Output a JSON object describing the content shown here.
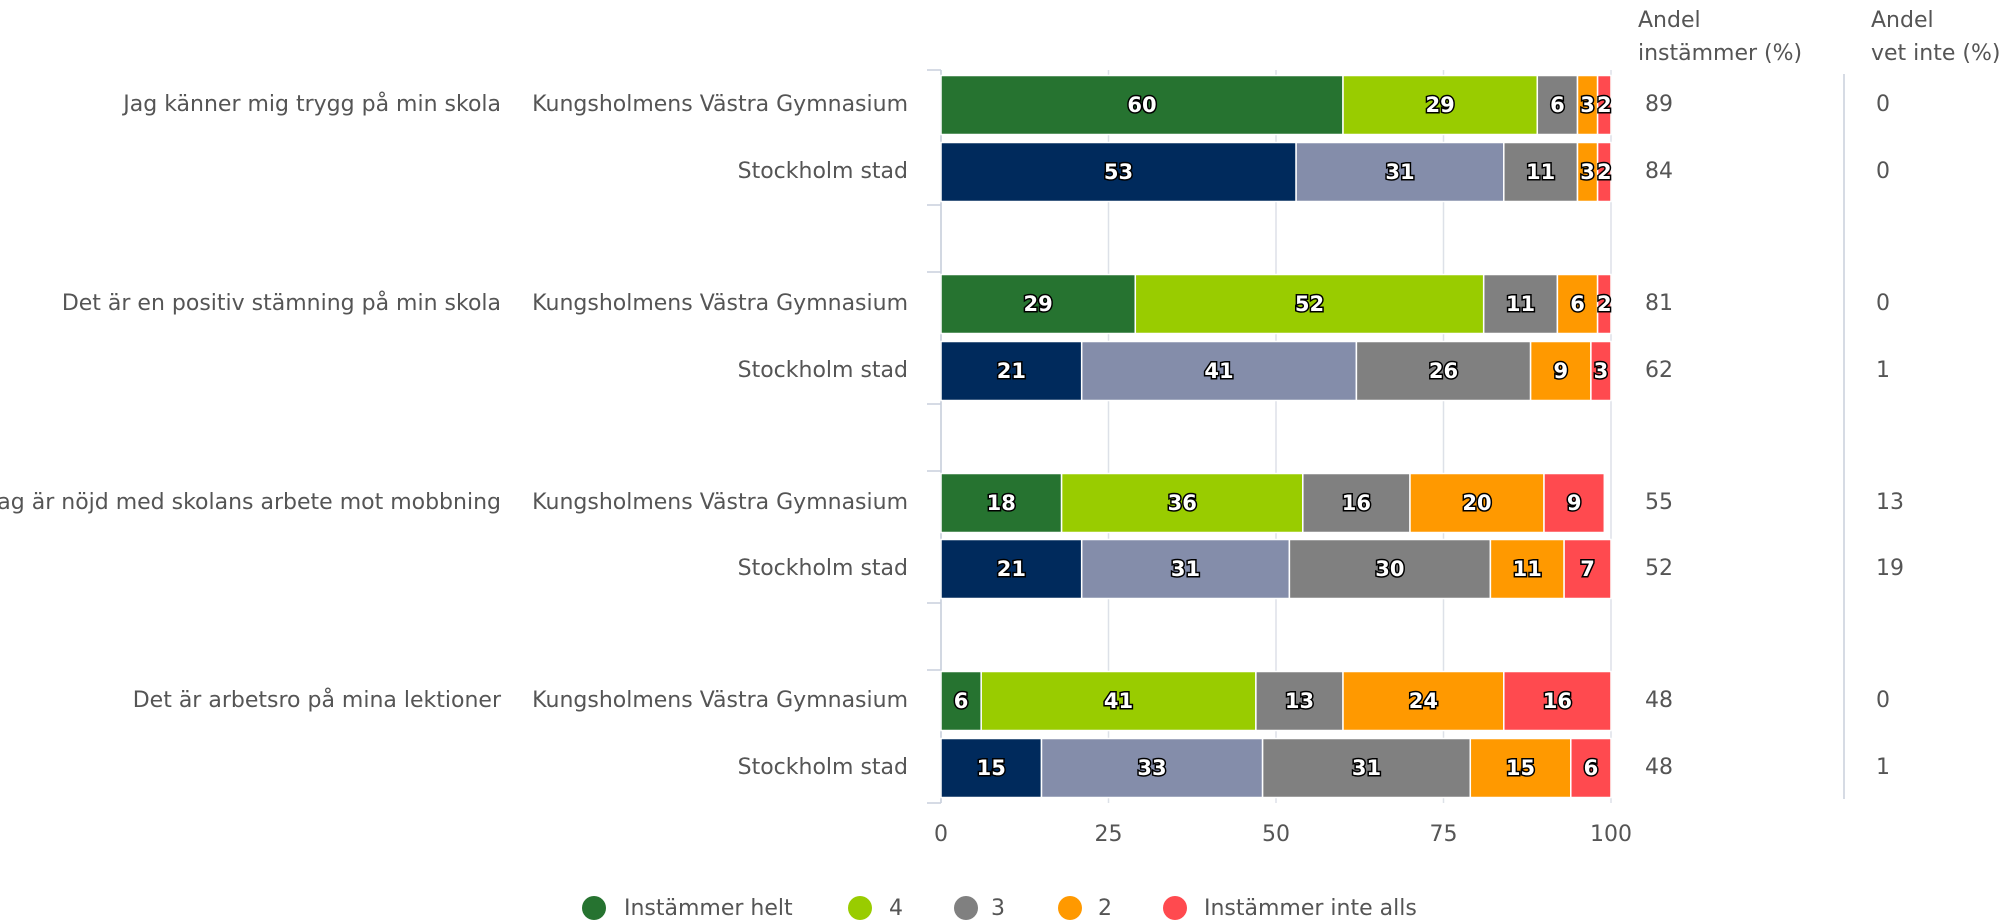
{
  "chart_data": {
    "type": "stacked-barh",
    "questions": [
      "Jag känner mig trygg på min skola",
      "Det är en positiv stämning på min skola",
      "Jag är nöjd med skolans arbete mot mobbning",
      "Det är arbetsro på mina lektioner"
    ],
    "columns": [
      [
        "Andel",
        "instämmer (%)"
      ],
      [
        "Andel",
        "vet inte (%)"
      ]
    ],
    "series": [
      {
        "name": "Instämmer helt",
        "color": "#267330"
      },
      {
        "name": "4",
        "color": "#99cc00"
      },
      {
        "name": "3",
        "color": "#808080"
      },
      {
        "name": "2",
        "color": "#ff9900"
      },
      {
        "name": "Instämmer inte alls",
        "color": "#ff4a4f"
      }
    ],
    "comparison_colors": [
      "#002a5c",
      "#848daa",
      "#808080",
      "#ff9900",
      "#ff4a4f"
    ],
    "rows": [
      {
        "group": "Kungsholmens Västra Gymnasium",
        "values": [
          60,
          29,
          6,
          3,
          2
        ],
        "agree": 89,
        "dont_know": 0
      },
      {
        "group": "Stockholm stad",
        "values": [
          53,
          31,
          11,
          3,
          2
        ],
        "agree": 84,
        "dont_know": 0
      },
      {
        "group": "Kungsholmens Västra Gymnasium",
        "values": [
          29,
          52,
          11,
          6,
          2
        ],
        "agree": 81,
        "dont_know": 0
      },
      {
        "group": "Stockholm stad",
        "values": [
          21,
          41,
          26,
          9,
          3
        ],
        "agree": 62,
        "dont_know": 1
      },
      {
        "group": "Kungsholmens Västra Gymnasium",
        "values": [
          18,
          36,
          16,
          20,
          9
        ],
        "agree": 55,
        "dont_know": 13
      },
      {
        "group": "Stockholm stad",
        "values": [
          21,
          31,
          30,
          11,
          7
        ],
        "agree": 52,
        "dont_know": 19
      },
      {
        "group": "Kungsholmens Västra Gymnasium",
        "values": [
          6,
          41,
          13,
          24,
          16
        ],
        "agree": 48,
        "dont_know": 0
      },
      {
        "group": "Stockholm stad",
        "values": [
          15,
          33,
          31,
          15,
          6
        ],
        "agree": 48,
        "dont_know": 1
      }
    ],
    "xlim": [
      0,
      100
    ],
    "xticks": [
      0,
      25,
      50,
      75,
      100
    ],
    "grid": true
  }
}
